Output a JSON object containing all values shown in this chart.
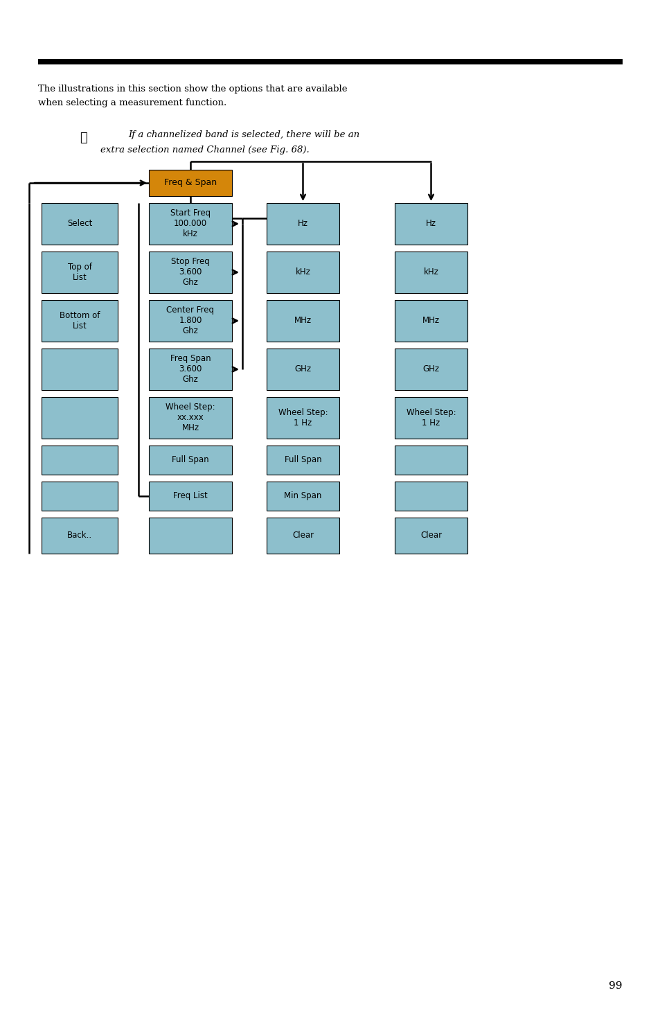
{
  "page_width": 9.54,
  "page_height": 14.75,
  "bg_color": "#ffffff",
  "box_blue": "#8dbfcc",
  "box_orange": "#d4860a",
  "text_color": "#000000",
  "intro_text1": "The illustrations in this section show the options that are available",
  "intro_text2": "when selecting a measurement function.",
  "note_text1": "If a channelized band is selected, there will be an",
  "note_text2": "extra selection named Channel (see Fig. 68).",
  "col1_labels": [
    "Select",
    "Top of\nList",
    "Bottom of\nList",
    "",
    "",
    "",
    "",
    "Back.."
  ],
  "col2_header": "Freq & Span",
  "col2_labels": [
    "Start Freq\n100.000\nkHz",
    "Stop Freq\n3.600\nGhz",
    "Center Freq\n1.800\nGhz",
    "Freq Span\n3.600\nGhz",
    "Wheel Step:\nxx.xxx\nMHz",
    "Full Span",
    "Freq List",
    ""
  ],
  "col3_labels": [
    "Hz",
    "kHz",
    "MHz",
    "GHz",
    "Wheel Step:\n1 Hz",
    "Full Span",
    "Min Span",
    "Clear"
  ],
  "col4_labels": [
    "Hz",
    "kHz",
    "MHz",
    "GHz",
    "Wheel Step:\n1 Hz",
    "",
    "",
    "Clear"
  ],
  "page_number": "99"
}
